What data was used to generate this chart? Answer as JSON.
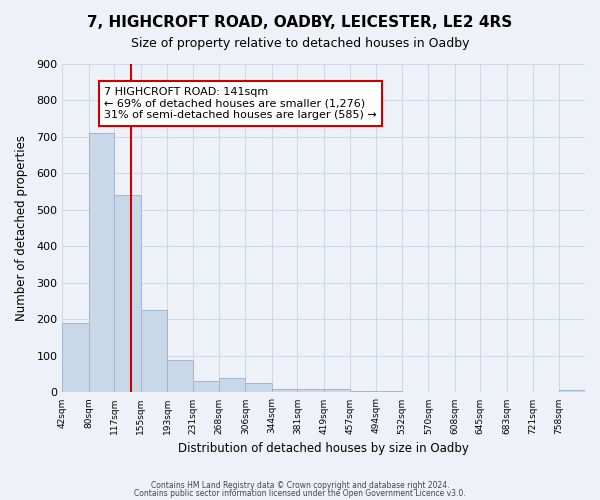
{
  "title": "7, HIGHCROFT ROAD, OADBY, LEICESTER, LE2 4RS",
  "subtitle": "Size of property relative to detached houses in Oadby",
  "xlabel": "Distribution of detached houses by size in Oadby",
  "ylabel": "Number of detached properties",
  "footer_line1": "Contains HM Land Registry data © Crown copyright and database right 2024.",
  "footer_line2": "Contains public sector information licensed under the Open Government Licence v3.0.",
  "bar_edges": [
    42,
    80,
    117,
    155,
    193,
    231,
    268,
    306,
    344,
    381,
    419,
    457,
    494,
    532,
    570,
    608,
    645,
    683,
    721,
    758,
    796
  ],
  "bar_heights": [
    190,
    710,
    540,
    225,
    88,
    32,
    40,
    25,
    10,
    10,
    10,
    5,
    5,
    0,
    0,
    0,
    0,
    0,
    0,
    8
  ],
  "bar_color": "#c8d8e8",
  "bar_edgecolor": "#a0b8d0",
  "property_line_x": 141,
  "ylim": [
    0,
    900
  ],
  "yticks": [
    0,
    100,
    200,
    300,
    400,
    500,
    600,
    700,
    800,
    900
  ],
  "annotation_title": "7 HIGHCROFT ROAD: 141sqm",
  "annotation_line1": "← 69% of detached houses are smaller (1,276)",
  "annotation_line2": "31% of semi-detached houses are larger (585) →",
  "annotation_box_color": "#ffffff",
  "annotation_box_edgecolor": "#cc0000",
  "grid_color": "#d0d8e8",
  "bg_color": "#eef2f8"
}
